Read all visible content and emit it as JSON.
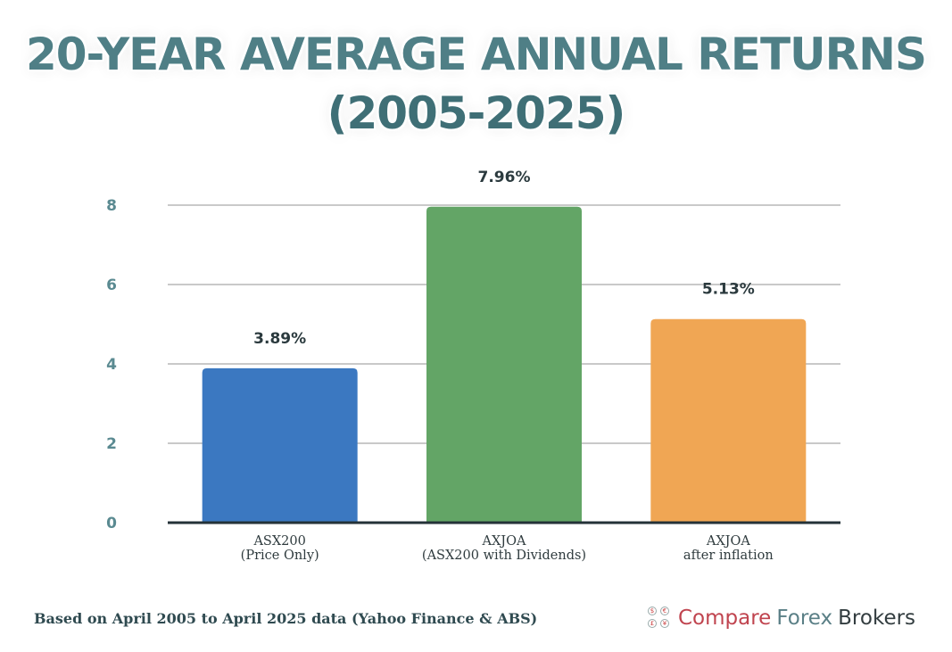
{
  "title": {
    "line1": "20-YEAR AVERAGE ANNUAL RETURNS",
    "line2": "(2005-2025)"
  },
  "chart_data": {
    "type": "bar",
    "categories": [
      [
        "ASX200",
        "(Price Only)"
      ],
      [
        "AXJOA",
        "(ASX200 with Dividends)"
      ],
      [
        "AXJOA",
        "after inflation"
      ]
    ],
    "values": [
      3.89,
      7.96,
      5.13
    ],
    "data_labels": [
      "3.89%",
      "7.96%",
      "5.13%"
    ],
    "colors": [
      "#3b78c1",
      "#63a566",
      "#f0a654"
    ],
    "ylim": [
      0,
      8
    ],
    "yticks": [
      0,
      2,
      4,
      6,
      8
    ],
    "grid": true,
    "title": "20-YEAR AVERAGE ANNUAL RETURNS (2005-2025)",
    "xlabel": "",
    "ylabel": ""
  },
  "footer": {
    "note": "Based on April 2005 to April 2025 data (Yahoo Finance & ABS)",
    "brand": {
      "word1": "Compare",
      "word2": "Forex",
      "word3": "Brokers",
      "icon": "coins-logo-icon"
    }
  }
}
